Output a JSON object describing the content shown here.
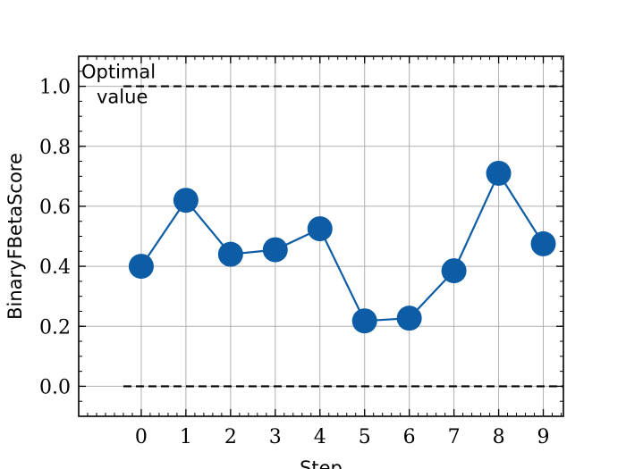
{
  "chart_data": {
    "type": "line",
    "xlabel": "Step",
    "ylabel": "BinaryFBetaScore",
    "x": [
      0,
      1,
      2,
      3,
      4,
      5,
      6,
      7,
      8,
      9
    ],
    "series": [
      {
        "values": [
          0.4,
          0.62,
          0.44,
          0.455,
          0.525,
          0.218,
          0.227,
          0.385,
          0.71,
          0.475
        ],
        "color": "#0c5da5"
      }
    ],
    "xlim": [
      -1.4,
      9.45
    ],
    "ylim": [
      -0.1,
      1.1
    ],
    "xticks": [
      "0",
      "1",
      "2",
      "3",
      "4",
      "5",
      "6",
      "7",
      "8",
      "9"
    ],
    "yticks": [
      "0.0",
      "0.2",
      "0.4",
      "0.6",
      "0.8",
      "1.0"
    ],
    "reference_lines": [
      {
        "y": 1.0,
        "x_from": -0.4,
        "x_to": 9.45,
        "style": "dashed"
      },
      {
        "y": 0.0,
        "x_from": -0.4,
        "x_to": 9.45,
        "style": "dashed"
      }
    ],
    "annotation": {
      "lines": [
        "Optimal",
        "value"
      ],
      "anchor_x": -1.4,
      "anchor_y": 1.0
    },
    "grid": true,
    "legend": "none"
  }
}
